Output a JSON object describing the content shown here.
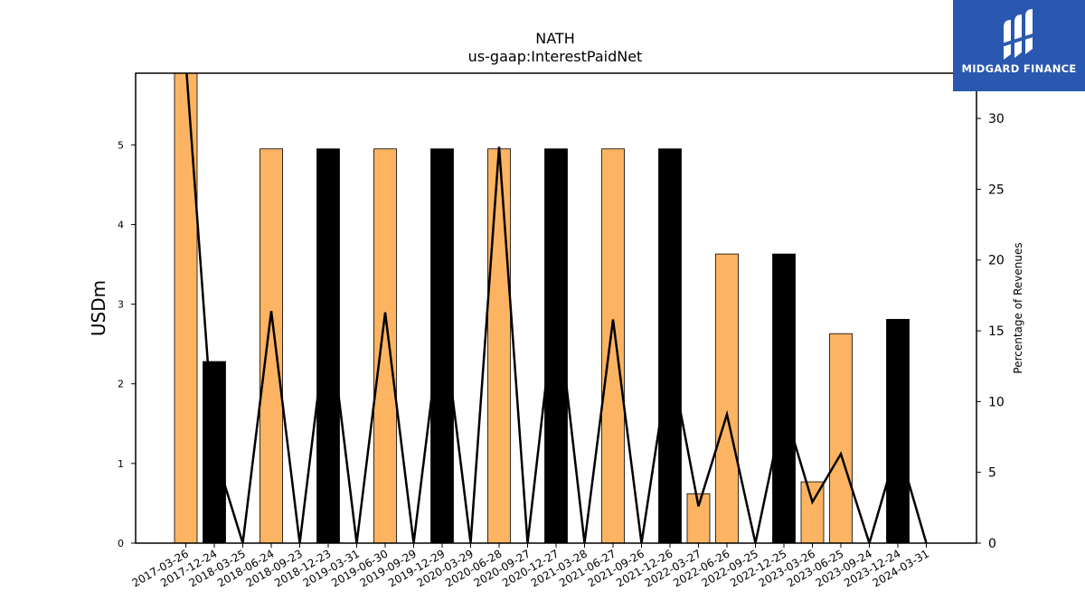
{
  "chart_data": {
    "type": "bar",
    "title": "NATH",
    "subtitle": "us-gaap:InterestPaidNet",
    "ylabel": "USDm",
    "y2label": "Percentage of Revenues",
    "ylim": [
      0,
      5.9
    ],
    "y2lim": [
      0,
      33.2
    ],
    "yticks": [
      0,
      1,
      2,
      3,
      4,
      5
    ],
    "y2ticks": [
      0,
      5,
      10,
      15,
      20,
      25,
      30
    ],
    "categories": [
      "2017-03-26",
      "2017-12-24",
      "2018-03-25",
      "2018-06-24",
      "2018-09-23",
      "2018-12-23",
      "2019-03-31",
      "2019-06-30",
      "2019-09-29",
      "2019-12-29",
      "2020-03-29",
      "2020-06-28",
      "2020-09-27",
      "2020-12-27",
      "2021-03-28",
      "2021-06-27",
      "2021-09-26",
      "2021-12-26",
      "2022-03-27",
      "2022-06-26",
      "2022-09-25",
      "2022-12-25",
      "2023-03-26",
      "2023-06-25",
      "2023-09-24",
      "2023-12-24",
      "2024-03-31"
    ],
    "series": [
      {
        "kind": "bar",
        "values": [
          5.9,
          2.28,
          0,
          4.95,
          0,
          4.95,
          0,
          4.95,
          0,
          4.95,
          0,
          4.95,
          0,
          4.95,
          0,
          4.95,
          0,
          4.95,
          0.62,
          3.63,
          0,
          3.63,
          0.77,
          2.63,
          0,
          2.81,
          0
        ],
        "colors": [
          "#fdb462",
          "#000000",
          "#fdb462",
          "#fdb462",
          "#fdb462",
          "#000000",
          "#fdb462",
          "#fdb462",
          "#fdb462",
          "#000000",
          "#fdb462",
          "#fdb462",
          "#fdb462",
          "#000000",
          "#fdb462",
          "#fdb462",
          "#fdb462",
          "#000000",
          "#fdb462",
          "#fdb462",
          "#fdb462",
          "#000000",
          "#fdb462",
          "#fdb462",
          "#fdb462",
          "#000000",
          "#fdb462"
        ]
      },
      {
        "kind": "line",
        "axis": "right",
        "color": "#000000",
        "values": [
          34,
          6.5,
          0,
          16.4,
          0,
          16.4,
          0,
          16.3,
          0,
          16.3,
          0,
          28.0,
          0,
          17.5,
          0,
          15.8,
          0,
          13.2,
          2.6,
          9.1,
          0,
          9.6,
          2.9,
          6.3,
          0,
          6.9,
          0
        ]
      }
    ]
  },
  "logo": {
    "text": "MIDGARD FINANCE"
  }
}
